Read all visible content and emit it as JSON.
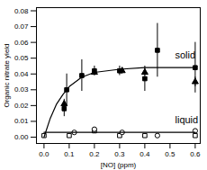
{
  "chart_data": {
    "type": "scatter",
    "x_label": "[NO] (ppm)",
    "y_label": "Organic nitrate yield",
    "xlim": [
      -0.03,
      0.62
    ],
    "ylim": [
      -0.004,
      0.082
    ],
    "xticks": [
      {
        "value": 0,
        "label": "0.0"
      },
      0.1,
      0.2,
      0.3,
      0.4,
      0.5,
      0.6
    ],
    "yticks": [
      {
        "value": 0,
        "label": "0.00"
      },
      0.01,
      0.02,
      0.03,
      0.04,
      0.05,
      0.06,
      0.07,
      0.08
    ],
    "grid": false,
    "annotations": [
      {
        "text": "solid",
        "x": 0.52,
        "y": 0.052
      },
      {
        "text": "liquid",
        "x": 0.52,
        "y": 0.011
      }
    ],
    "series": [
      {
        "type": "scatter",
        "marker": "square",
        "color": "#000000",
        "x": [
          0.08,
          0.09,
          0.15,
          0.2,
          0.3,
          0.4,
          0.45,
          0.6
        ],
        "values": [
          0.018,
          0.03,
          0.039,
          0.042,
          0.042,
          0.037,
          0.055,
          0.044
        ],
        "errors": [
          0.005,
          0.01,
          0.01,
          0.003,
          0.003,
          0.008,
          0.017,
          0.016
        ]
      },
      {
        "type": "scatter",
        "marker": "triangle",
        "color": "#000000",
        "x": [
          0.08,
          0.2,
          0.31,
          0.4,
          0.6
        ],
        "values": [
          0.021,
          0.041,
          0.042,
          0.041,
          0.035
        ],
        "errors": [
          0.003,
          0.002,
          0.002,
          0.002,
          0.003
        ]
      },
      {
        "type": "scatter",
        "marker": "open-square",
        "color": "#000000",
        "x": [
          0.0,
          0.1,
          0.2,
          0.3,
          0.4,
          0.6
        ],
        "values": [
          0.001,
          0.001,
          0.004,
          0.001,
          0.001,
          0.001
        ],
        "errors": [
          0.001,
          0.001,
          0.001,
          0.001,
          0.001,
          0.001
        ]
      },
      {
        "type": "scatter",
        "marker": "open-circle",
        "color": "#000000",
        "x": [
          0.12,
          0.2,
          0.31,
          0.45,
          0.6
        ],
        "values": [
          0.003,
          0.005,
          0.003,
          0.001,
          0.004
        ],
        "errors": [
          0.001,
          0.001,
          0.001,
          0.001,
          0.001
        ]
      },
      {
        "type": "line",
        "line_style": "solid",
        "color": "#000000",
        "x": [
          0,
          0.025,
          0.05,
          0.075,
          0.1,
          0.15,
          0.2,
          0.3,
          0.4,
          0.5,
          0.6
        ],
        "values": [
          0,
          0.012,
          0.021,
          0.027,
          0.032,
          0.038,
          0.041,
          0.043,
          0.044,
          0.044,
          0.044
        ]
      },
      {
        "type": "line",
        "line_style": "solid",
        "color": "#000000",
        "x": [
          0,
          0.6
        ],
        "values": [
          0.003,
          0.003
        ]
      }
    ]
  }
}
